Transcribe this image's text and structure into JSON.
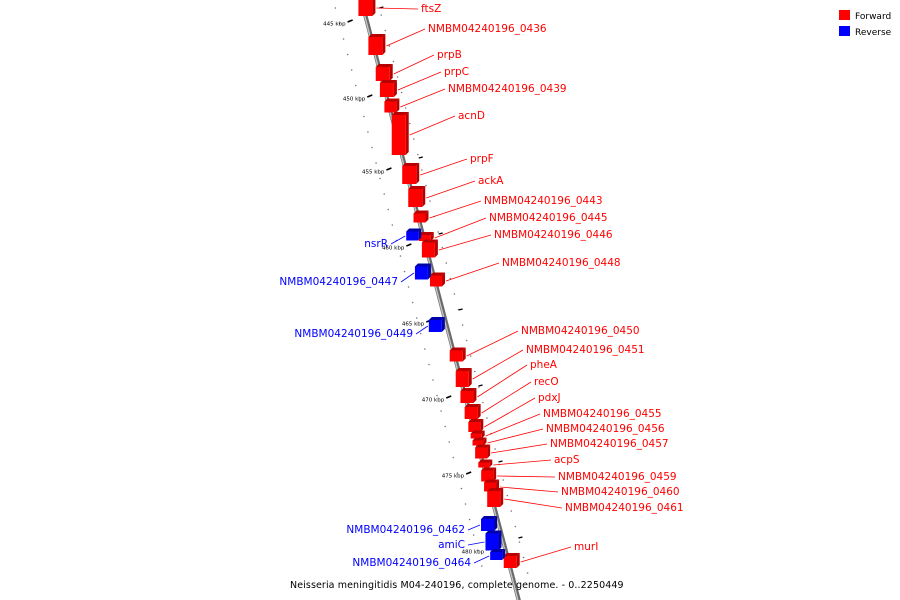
{
  "legend": [
    {
      "label": "Forward",
      "color": "#ff0000"
    },
    {
      "label": "Reverse",
      "color": "#0000ff"
    }
  ],
  "colors": {
    "forward": "#ff0000",
    "forward_dark": "#b80000",
    "reverse": "#0000ff",
    "reverse_dark": "#0000a8",
    "backbone": "#8c8c8c"
  },
  "caption": "Neisseria meningitidis M04-240196, complete genome. - 0..2250449",
  "ticks": [
    {
      "kbp": 445,
      "label": "445 kbp"
    },
    {
      "kbp": 450,
      "label": "450 kbp"
    },
    {
      "kbp": 455,
      "label": "455 kbp"
    },
    {
      "kbp": 460,
      "label": "460 kbp"
    },
    {
      "kbp": 465,
      "label": "465 kbp"
    },
    {
      "kbp": 470,
      "label": "470 kbp"
    },
    {
      "kbp": 475,
      "label": "475 kbp"
    },
    {
      "kbp": 480,
      "label": "480 kbp"
    }
  ],
  "genes": [
    {
      "name": "ftsZ",
      "strand": "forward"
    },
    {
      "name": "NMBM04240196_0436",
      "strand": "forward"
    },
    {
      "name": "prpB",
      "strand": "forward"
    },
    {
      "name": "prpC",
      "strand": "forward"
    },
    {
      "name": "NMBM04240196_0439",
      "strand": "forward"
    },
    {
      "name": "acnD",
      "strand": "forward"
    },
    {
      "name": "prpF",
      "strand": "forward"
    },
    {
      "name": "ackA",
      "strand": "forward"
    },
    {
      "name": "NMBM04240196_0443",
      "strand": "forward"
    },
    {
      "name": "NMBM04240196_0445",
      "strand": "forward"
    },
    {
      "name": "NMBM04240196_0446",
      "strand": "forward"
    },
    {
      "name": "nsrR",
      "strand": "reverse"
    },
    {
      "name": "NMBM04240196_0448",
      "strand": "forward"
    },
    {
      "name": "NMBM04240196_0447",
      "strand": "reverse"
    },
    {
      "name": "NMBM04240196_0449",
      "strand": "reverse"
    },
    {
      "name": "NMBM04240196_0450",
      "strand": "forward"
    },
    {
      "name": "NMBM04240196_0451",
      "strand": "forward"
    },
    {
      "name": "pheA",
      "strand": "forward"
    },
    {
      "name": "recO",
      "strand": "forward"
    },
    {
      "name": "pdxJ",
      "strand": "forward"
    },
    {
      "name": "NMBM04240196_0455",
      "strand": "forward"
    },
    {
      "name": "NMBM04240196_0456",
      "strand": "forward"
    },
    {
      "name": "NMBM04240196_0457",
      "strand": "forward"
    },
    {
      "name": "acpS",
      "strand": "forward"
    },
    {
      "name": "NMBM04240196_0459",
      "strand": "forward"
    },
    {
      "name": "NMBM04240196_0460",
      "strand": "forward"
    },
    {
      "name": "NMBM04240196_0461",
      "strand": "forward"
    },
    {
      "name": "NMBM04240196_0462",
      "strand": "reverse"
    },
    {
      "name": "amiC",
      "strand": "reverse"
    },
    {
      "name": "murI",
      "strand": "forward"
    },
    {
      "name": "NMBM04240196_0464",
      "strand": "reverse"
    }
  ]
}
